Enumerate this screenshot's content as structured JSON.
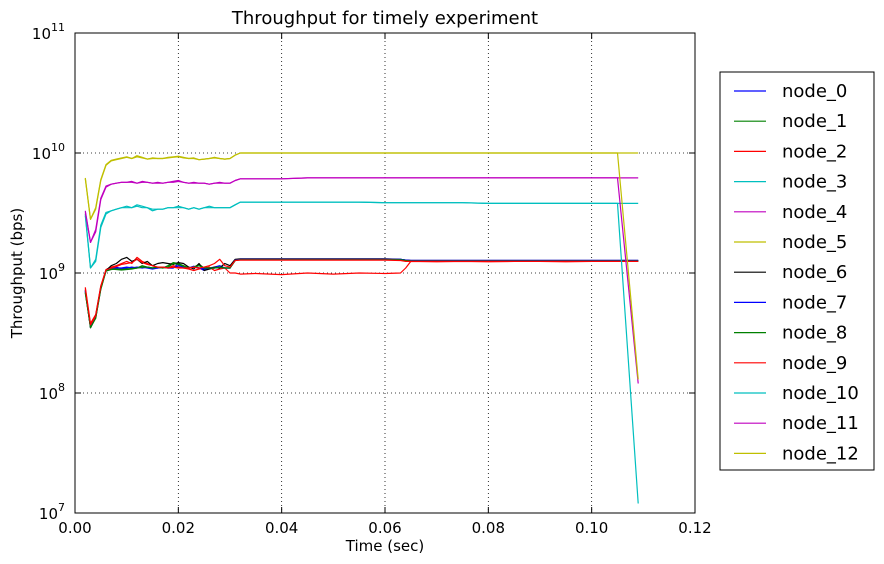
{
  "chart_data": {
    "type": "line",
    "title": "Throughput for timely experiment",
    "xlabel": "Time (sec)",
    "ylabel": "Throughput (bps)",
    "xlim": [
      0.0,
      0.12
    ],
    "ylim": [
      10000000.0,
      100000000000.0
    ],
    "yscale": "log",
    "grid": true,
    "legend_position": "outside-right",
    "x_ticks": [
      "0.00",
      "0.02",
      "0.04",
      "0.06",
      "0.08",
      "0.10",
      "0.12"
    ],
    "y_ticks": [
      {
        "base": "10",
        "exp": "7"
      },
      {
        "base": "10",
        "exp": "8"
      },
      {
        "base": "10",
        "exp": "9"
      },
      {
        "base": "10",
        "exp": "10"
      },
      {
        "base": "10",
        "exp": "11"
      }
    ],
    "x": [
      0.002,
      0.003,
      0.004,
      0.005,
      0.006,
      0.007,
      0.008,
      0.009,
      0.01,
      0.011,
      0.012,
      0.013,
      0.014,
      0.015,
      0.016,
      0.017,
      0.018,
      0.019,
      0.02,
      0.021,
      0.022,
      0.023,
      0.024,
      0.025,
      0.026,
      0.027,
      0.028,
      0.029,
      0.03,
      0.031,
      0.032,
      0.035,
      0.04,
      0.045,
      0.05,
      0.055,
      0.06,
      0.063,
      0.064,
      0.065,
      0.07,
      0.075,
      0.08,
      0.085,
      0.09,
      0.095,
      0.1,
      0.105,
      0.109
    ],
    "series": [
      {
        "name": "node_0",
        "color": "#0000ff",
        "values": [
          700000000.0,
          350000000.0,
          430000000.0,
          750000000.0,
          1050000000.0,
          1100000000.0,
          1120000000.0,
          1080000000.0,
          1100000000.0,
          1120000000.0,
          1100000000.0,
          1120000000.0,
          1100000000.0,
          1080000000.0,
          1100000000.0,
          1120000000.0,
          1100000000.0,
          1100000000.0,
          1200000000.0,
          1120000000.0,
          1100000000.0,
          1140000000.0,
          1100000000.0,
          1050000000.0,
          1100000000.0,
          1120000000.0,
          1150000000.0,
          1100000000.0,
          1100000000.0,
          1280000000.0,
          1300000000.0,
          1300000000.0,
          1300000000.0,
          1300000000.0,
          1300000000.0,
          1300000000.0,
          1300000000.0,
          1300000000.0,
          1280000000.0,
          1270000000.0,
          1270000000.0,
          1270000000.0,
          1270000000.0,
          1270000000.0,
          1270000000.0,
          1270000000.0,
          1270000000.0,
          1270000000.0,
          1270000000.0
        ]
      },
      {
        "name": "node_1",
        "color": "#008000",
        "values": [
          680000000.0,
          360000000.0,
          420000000.0,
          730000000.0,
          1040000000.0,
          1080000000.0,
          1070000000.0,
          1060000000.0,
          1070000000.0,
          1080000000.0,
          1100000000.0,
          1150000000.0,
          1120000000.0,
          1100000000.0,
          1120000000.0,
          1100000000.0,
          1150000000.0,
          1220000000.0,
          1200000000.0,
          1150000000.0,
          1100000000.0,
          1120000000.0,
          1180000000.0,
          1100000000.0,
          1080000000.0,
          1100000000.0,
          1120000000.0,
          1100000000.0,
          1100000000.0,
          1270000000.0,
          1290000000.0,
          1290000000.0,
          1290000000.0,
          1290000000.0,
          1290000000.0,
          1290000000.0,
          1290000000.0,
          1290000000.0,
          1270000000.0,
          1260000000.0,
          1260000000.0,
          1260000000.0,
          1260000000.0,
          1260000000.0,
          1260000000.0,
          1260000000.0,
          1260000000.0,
          1260000000.0,
          1260000000.0
        ]
      },
      {
        "name": "node_2",
        "color": "#ff0000",
        "values": [
          760000000.0,
          380000000.0,
          450000000.0,
          780000000.0,
          1070000000.0,
          1120000000.0,
          1150000000.0,
          1200000000.0,
          1250000000.0,
          1200000000.0,
          1350000000.0,
          1250000000.0,
          1200000000.0,
          1150000000.0,
          1100000000.0,
          1120000000.0,
          1100000000.0,
          1150000000.0,
          1120000000.0,
          1100000000.0,
          1080000000.0,
          1050000000.0,
          1080000000.0,
          1100000000.0,
          1120000000.0,
          1050000000.0,
          1080000000.0,
          1100000000.0,
          1000000000.0,
          1000000000.0,
          980000000.0,
          990000000.0,
          970000000.0,
          1000000000.0,
          980000000.0,
          1000000000.0,
          990000000.0,
          1000000000.0,
          1100000000.0,
          1250000000.0,
          1240000000.0,
          1250000000.0,
          1240000000.0,
          1250000000.0,
          1250000000.0,
          1240000000.0,
          1250000000.0,
          1250000000.0,
          1250000000.0
        ]
      },
      {
        "name": "node_3",
        "color": "#00bfbf",
        "values": [
          3100000000.0,
          1100000000.0,
          1300000000.0,
          2500000000.0,
          3200000000.0,
          3300000000.0,
          3400000000.0,
          3500000000.0,
          3600000000.0,
          3500000000.0,
          3700000000.0,
          3600000000.0,
          3500000000.0,
          3300000000.0,
          3400000000.0,
          3400000000.0,
          3500000000.0,
          3500000000.0,
          3600000000.0,
          3500000000.0,
          3400000000.0,
          3500000000.0,
          3400000000.0,
          3500000000.0,
          3600000000.0,
          3500000000.0,
          3500000000.0,
          3500000000.0,
          3500000000.0,
          3700000000.0,
          3900000000.0,
          3900000000.0,
          3900000000.0,
          3900000000.0,
          3900000000.0,
          3900000000.0,
          3850000000.0,
          3850000000.0,
          3850000000.0,
          3850000000.0,
          3850000000.0,
          3850000000.0,
          3800000000.0,
          3800000000.0,
          3800000000.0,
          3800000000.0,
          3800000000.0,
          3800000000.0,
          3800000000.0
        ]
      },
      {
        "name": "node_4",
        "color": "#bf00bf",
        "values": [
          3300000000.0,
          1800000000.0,
          2300000000.0,
          4200000000.0,
          5300000000.0,
          5500000000.0,
          5600000000.0,
          5700000000.0,
          5700000000.0,
          5800000000.0,
          5600000000.0,
          5800000000.0,
          5700000000.0,
          5600000000.0,
          5700000000.0,
          5600000000.0,
          5700000000.0,
          5800000000.0,
          5900000000.0,
          5700000000.0,
          5600000000.0,
          5700000000.0,
          5600000000.0,
          5600000000.0,
          5500000000.0,
          5600000000.0,
          5700000000.0,
          5600000000.0,
          5600000000.0,
          5900000000.0,
          6100000000.0,
          6100000000.0,
          6100000000.0,
          6200000000.0,
          6200000000.0,
          6200000000.0,
          6200000000.0,
          6200000000.0,
          6200000000.0,
          6200000000.0,
          6200000000.0,
          6200000000.0,
          6200000000.0,
          6200000000.0,
          6200000000.0,
          6200000000.0,
          6200000000.0,
          6200000000.0,
          6200000000.0
        ]
      },
      {
        "name": "node_5",
        "color": "#bfbf00",
        "values": [
          6200000000.0,
          2800000000.0,
          3500000000.0,
          6000000000.0,
          8000000000.0,
          8700000000.0,
          8900000000.0,
          9100000000.0,
          9300000000.0,
          9000000000.0,
          9500000000.0,
          9200000000.0,
          8900000000.0,
          9100000000.0,
          9000000000.0,
          9000000000.0,
          9200000000.0,
          9300000000.0,
          9400000000.0,
          9200000000.0,
          9000000000.0,
          9100000000.0,
          8800000000.0,
          8900000000.0,
          9000000000.0,
          9200000000.0,
          9000000000.0,
          8900000000.0,
          9000000000.0,
          9600000000.0,
          10000000000.0,
          10000000000.0,
          10000000000.0,
          10000000000.0,
          10000000000.0,
          10000000000.0,
          10000000000.0,
          10000000000.0,
          10000000000.0,
          10000000000.0,
          10000000000.0,
          10000000000.0,
          10000000000.0,
          10000000000.0,
          10000000000.0,
          10000000000.0,
          10000000000.0,
          10000000000.0,
          10000000000.0
        ]
      },
      {
        "name": "node_6",
        "color": "#000000",
        "values": [
          720000000.0,
          350000000.0,
          440000000.0,
          760000000.0,
          1050000000.0,
          1150000000.0,
          1200000000.0,
          1300000000.0,
          1350000000.0,
          1250000000.0,
          1300000000.0,
          1200000000.0,
          1250000000.0,
          1150000000.0,
          1200000000.0,
          1220000000.0,
          1200000000.0,
          1180000000.0,
          1220000000.0,
          1200000000.0,
          1120000000.0,
          1080000000.0,
          1200000000.0,
          1050000000.0,
          1080000000.0,
          1120000000.0,
          1100000000.0,
          1200000000.0,
          1150000000.0,
          1300000000.0,
          1310000000.0,
          1310000000.0,
          1310000000.0,
          1310000000.0,
          1310000000.0,
          1310000000.0,
          1310000000.0,
          1300000000.0,
          1280000000.0,
          1270000000.0,
          1270000000.0,
          1270000000.0,
          1270000000.0,
          1270000000.0,
          1270000000.0,
          1270000000.0,
          1270000000.0,
          1270000000.0,
          1270000000.0
        ]
      },
      {
        "name": "node_7",
        "color": "#0000ff",
        "values": [
          710000000.0,
          360000000.0,
          430000000.0,
          750000000.0,
          1050000000.0,
          1100000000.0,
          1100000000.0,
          1100000000.0,
          1120000000.0,
          1100000000.0,
          1120000000.0,
          1100000000.0,
          1120000000.0,
          1100000000.0,
          1100000000.0,
          1120000000.0,
          1100000000.0,
          1100000000.0,
          1150000000.0,
          1120000000.0,
          1100000000.0,
          1120000000.0,
          1100000000.0,
          1080000000.0,
          1100000000.0,
          1100000000.0,
          1120000000.0,
          1100000000.0,
          1100000000.0,
          1280000000.0,
          1300000000.0,
          1300000000.0,
          1300000000.0,
          1300000000.0,
          1300000000.0,
          1300000000.0,
          1300000000.0,
          1300000000.0,
          1280000000.0,
          1270000000.0,
          1270000000.0,
          1270000000.0,
          1270000000.0,
          1270000000.0,
          1270000000.0,
          1270000000.0,
          1270000000.0,
          1270000000.0,
          1270000000.0
        ]
      },
      {
        "name": "node_8",
        "color": "#008000",
        "values": [
          690000000.0,
          350000000.0,
          420000000.0,
          740000000.0,
          1040000000.0,
          1070000000.0,
          1080000000.0,
          1070000000.0,
          1080000000.0,
          1090000000.0,
          1100000000.0,
          1120000000.0,
          1120000000.0,
          1100000000.0,
          1120000000.0,
          1100000000.0,
          1120000000.0,
          1200000000.0,
          1180000000.0,
          1140000000.0,
          1100000000.0,
          1120000000.0,
          1150000000.0,
          1100000000.0,
          1100000000.0,
          1100000000.0,
          1120000000.0,
          1100000000.0,
          1100000000.0,
          1270000000.0,
          1290000000.0,
          1290000000.0,
          1290000000.0,
          1290000000.0,
          1290000000.0,
          1290000000.0,
          1290000000.0,
          1290000000.0,
          1270000000.0,
          1260000000.0,
          1260000000.0,
          1260000000.0,
          1260000000.0,
          1260000000.0,
          1260000000.0,
          1260000000.0,
          1260000000.0,
          1260000000.0,
          1260000000.0
        ]
      },
      {
        "name": "node_9",
        "color": "#ff0000",
        "values": [
          740000000.0,
          370000000.0,
          440000000.0,
          770000000.0,
          1060000000.0,
          1100000000.0,
          1130000000.0,
          1180000000.0,
          1200000000.0,
          1220000000.0,
          1300000000.0,
          1220000000.0,
          1180000000.0,
          1150000000.0,
          1120000000.0,
          1120000000.0,
          1100000000.0,
          1120000000.0,
          1100000000.0,
          1100000000.0,
          1100000000.0,
          1120000000.0,
          1100000000.0,
          1120000000.0,
          1150000000.0,
          1200000000.0,
          1300000000.0,
          1150000000.0,
          1120000000.0,
          1270000000.0,
          1280000000.0,
          1280000000.0,
          1280000000.0,
          1280000000.0,
          1280000000.0,
          1280000000.0,
          1280000000.0,
          1270000000.0,
          1250000000.0,
          1250000000.0,
          1250000000.0,
          1250000000.0,
          1250000000.0,
          1250000000.0,
          1250000000.0,
          1250000000.0,
          1250000000.0,
          1250000000.0,
          1250000000.0
        ]
      },
      {
        "name": "node_10",
        "color": "#00bfbf",
        "values": [
          3000000000.0,
          1100000000.0,
          1250000000.0,
          2400000000.0,
          3100000000.0,
          3300000000.0,
          3400000000.0,
          3500000000.0,
          3500000000.0,
          3500000000.0,
          3600000000.0,
          3500000000.0,
          3500000000.0,
          3400000000.0,
          3400000000.0,
          3400000000.0,
          3500000000.0,
          3500000000.0,
          3500000000.0,
          3500000000.0,
          3400000000.0,
          3500000000.0,
          3400000000.0,
          3500000000.0,
          3500000000.0,
          3500000000.0,
          3500000000.0,
          3500000000.0,
          3500000000.0,
          3700000000.0,
          3900000000.0,
          3900000000.0,
          3900000000.0,
          3900000000.0,
          3900000000.0,
          3900000000.0,
          3850000000.0,
          3850000000.0,
          3850000000.0,
          3850000000.0,
          3850000000.0,
          3850000000.0,
          3800000000.0,
          3800000000.0,
          3800000000.0,
          3800000000.0,
          3800000000.0,
          3800000000.0,
          12000000.0
        ]
      },
      {
        "name": "node_11",
        "color": "#bf00bf",
        "values": [
          3200000000.0,
          1800000000.0,
          2200000000.0,
          4100000000.0,
          5200000000.0,
          5500000000.0,
          5600000000.0,
          5700000000.0,
          5700000000.0,
          5700000000.0,
          5600000000.0,
          5700000000.0,
          5700000000.0,
          5600000000.0,
          5600000000.0,
          5600000000.0,
          5700000000.0,
          5700000000.0,
          5800000000.0,
          5700000000.0,
          5600000000.0,
          5600000000.0,
          5600000000.0,
          5600000000.0,
          5500000000.0,
          5600000000.0,
          5600000000.0,
          5600000000.0,
          5600000000.0,
          5900000000.0,
          6100000000.0,
          6100000000.0,
          6100000000.0,
          6200000000.0,
          6200000000.0,
          6200000000.0,
          6200000000.0,
          6200000000.0,
          6200000000.0,
          6200000000.0,
          6200000000.0,
          6200000000.0,
          6200000000.0,
          6200000000.0,
          6200000000.0,
          6200000000.0,
          6200000000.0,
          6200000000.0,
          120000000.0
        ]
      },
      {
        "name": "node_12",
        "color": "#bfbf00",
        "values": [
          6100000000.0,
          2800000000.0,
          3400000000.0,
          5900000000.0,
          7900000000.0,
          8600000000.0,
          8800000000.0,
          9000000000.0,
          9200000000.0,
          9000000000.0,
          9300000000.0,
          9100000000.0,
          8900000000.0,
          9000000000.0,
          9000000000.0,
          9000000000.0,
          9100000000.0,
          9200000000.0,
          9300000000.0,
          9100000000.0,
          9000000000.0,
          9000000000.0,
          8800000000.0,
          8900000000.0,
          9000000000.0,
          9100000000.0,
          9000000000.0,
          8900000000.0,
          9000000000.0,
          9600000000.0,
          10000000000.0,
          10000000000.0,
          10000000000.0,
          10000000000.0,
          10000000000.0,
          10000000000.0,
          10000000000.0,
          10000000000.0,
          10000000000.0,
          10000000000.0,
          10000000000.0,
          10000000000.0,
          10000000000.0,
          10000000000.0,
          10000000000.0,
          10000000000.0,
          10000000000.0,
          10000000000.0,
          130000000.0
        ]
      }
    ]
  }
}
